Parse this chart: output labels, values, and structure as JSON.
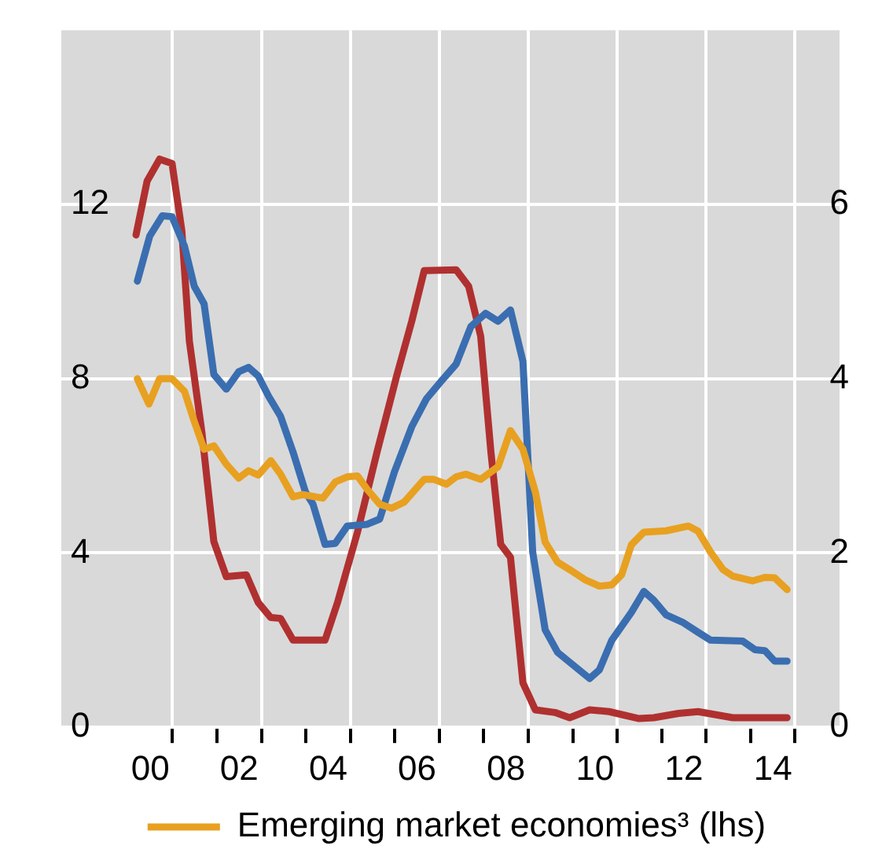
{
  "chart_data": {
    "type": "line",
    "legend": "bottom",
    "grid": true,
    "marker": "none",
    "line_style": "solid",
    "xlim": [
      1998,
      2015.5
    ],
    "xticks": [
      {
        "value": 2000,
        "label": "00"
      },
      {
        "value": 2002,
        "label": "02"
      },
      {
        "value": 2004,
        "label": "04"
      },
      {
        "value": 2006,
        "label": "06"
      },
      {
        "value": 2008,
        "label": "08"
      },
      {
        "value": 2010,
        "label": "10"
      },
      {
        "value": 2012,
        "label": "12"
      },
      {
        "value": 2014,
        "label": "14"
      },
      {
        "value": 2000.5,
        "label": null
      },
      {
        "value": 2001.5,
        "label": null
      },
      {
        "value": 2002.5,
        "label": null
      },
      {
        "value": 2003.5,
        "label": null
      },
      {
        "value": 2004.5,
        "label": null
      },
      {
        "value": 2005.5,
        "label": null
      },
      {
        "value": 2006.5,
        "label": null
      },
      {
        "value": 2007.5,
        "label": null
      },
      {
        "value": 2008.5,
        "label": null
      },
      {
        "value": 2009.5,
        "label": null
      },
      {
        "value": 2010.5,
        "label": null
      },
      {
        "value": 2011.5,
        "label": null
      },
      {
        "value": 2012.5,
        "label": null
      },
      {
        "value": 2013.5,
        "label": null
      },
      {
        "value": 2014.5,
        "label": null
      }
    ],
    "ylim": [
      0,
      16
    ],
    "yticks": [
      0,
      4,
      8,
      12
    ],
    "y2lim": [
      0,
      8
    ],
    "y2ticks": [
      0,
      2,
      4,
      6
    ],
    "series": [
      {
        "name": "Emerging market economies³ (lhs)",
        "color": "#e8a020",
        "x": [
          1999.71,
          1999.97,
          2000.21,
          2000.49,
          2000.77,
          2000.99,
          2001.21,
          2001.43,
          2001.71,
          2001.99,
          2002.21,
          2002.43,
          2002.71,
          2002.93,
          2003.21,
          2003.43,
          2003.88,
          2004.16,
          2004.43,
          2004.66,
          2004.88,
          2005.16,
          2005.43,
          2005.71,
          2006.16,
          2006.38,
          2006.66,
          2006.88,
          2007.1,
          2007.43,
          2007.82,
          2008.1,
          2008.38,
          2008.66,
          2008.88,
          2009.16,
          2009.43,
          2009.77,
          2010.1,
          2010.38,
          2010.6,
          2010.82,
          2011.1,
          2011.6,
          2012.1,
          2012.32,
          2012.6,
          2012.88,
          2013.1,
          2013.54,
          2013.82,
          2014.04,
          2014.32
        ],
        "values": [
          8.0,
          7.42,
          8.0,
          8.0,
          7.71,
          7.02,
          6.38,
          6.46,
          6.04,
          5.72,
          5.89,
          5.79,
          6.12,
          5.81,
          5.29,
          5.34,
          5.26,
          5.63,
          5.75,
          5.77,
          5.46,
          5.12,
          5.03,
          5.17,
          5.69,
          5.69,
          5.58,
          5.75,
          5.81,
          5.69,
          5.98,
          6.81,
          6.38,
          5.4,
          4.25,
          3.79,
          3.62,
          3.39,
          3.24,
          3.27,
          3.5,
          4.19,
          4.48,
          4.51,
          4.62,
          4.5,
          4.02,
          3.62,
          3.47,
          3.36,
          3.44,
          3.43,
          3.16
        ]
      },
      {
        "color": "#3a6eb0",
        "axis": "y2",
        "x": [
          1999.71,
          1999.99,
          2000.27,
          2000.49,
          2000.77,
          2000.99,
          2001.21,
          2001.43,
          2001.71,
          2001.99,
          2002.21,
          2002.43,
          2002.66,
          2002.93,
          2003.21,
          2003.49,
          2003.66,
          2003.93,
          2004.16,
          2004.43,
          2004.88,
          2005.16,
          2005.49,
          2005.88,
          2006.21,
          2006.54,
          2006.88,
          2007.21,
          2007.54,
          2007.82,
          2008.1,
          2008.38,
          2008.6,
          2008.88,
          2009.16,
          2009.88,
          2010.1,
          2010.38,
          2010.82,
          2011.1,
          2011.32,
          2011.6,
          2011.99,
          2012.32,
          2012.6,
          2013.32,
          2013.6,
          2013.82,
          2014.04,
          2014.32
        ],
        "values": [
          5.12,
          5.64,
          5.87,
          5.86,
          5.52,
          5.06,
          4.86,
          4.05,
          3.88,
          4.08,
          4.13,
          4.03,
          3.8,
          3.57,
          3.16,
          2.7,
          2.56,
          2.1,
          2.11,
          2.31,
          2.33,
          2.39,
          2.93,
          3.45,
          3.77,
          3.97,
          4.17,
          4.6,
          4.75,
          4.66,
          4.79,
          4.2,
          2.01,
          1.12,
          0.86,
          0.56,
          0.66,
          1.0,
          1.32,
          1.56,
          1.46,
          1.29,
          1.2,
          1.09,
          1.0,
          0.99,
          0.89,
          0.88,
          0.76,
          0.76
        ]
      },
      {
        "color": "#b03030",
        "axis": "y2",
        "x": [
          1999.68,
          1999.93,
          2000.21,
          2000.49,
          2000.71,
          2000.88,
          2001.16,
          2001.43,
          2001.71,
          2002.16,
          2002.43,
          2002.71,
          2002.93,
          2003.21,
          2003.93,
          2004.21,
          2004.66,
          2005.1,
          2005.54,
          2005.88,
          2006.16,
          2006.88,
          2007.16,
          2007.43,
          2007.66,
          2007.88,
          2008.1,
          2008.38,
          2008.66,
          2009.1,
          2009.43,
          2009.88,
          2010.32,
          2010.99,
          2011.32,
          2011.88,
          2012.32,
          2013.1,
          2014.32
        ],
        "values": [
          5.65,
          6.27,
          6.52,
          6.47,
          5.7,
          4.43,
          3.39,
          2.13,
          1.73,
          1.75,
          1.43,
          1.26,
          1.25,
          1.0,
          1.0,
          1.43,
          2.24,
          3.16,
          4.03,
          4.66,
          5.24,
          5.25,
          5.06,
          4.49,
          3.16,
          2.1,
          1.95,
          0.51,
          0.2,
          0.17,
          0.11,
          0.2,
          0.18,
          0.1,
          0.11,
          0.16,
          0.18,
          0.11,
          0.11
        ]
      }
    ]
  }
}
